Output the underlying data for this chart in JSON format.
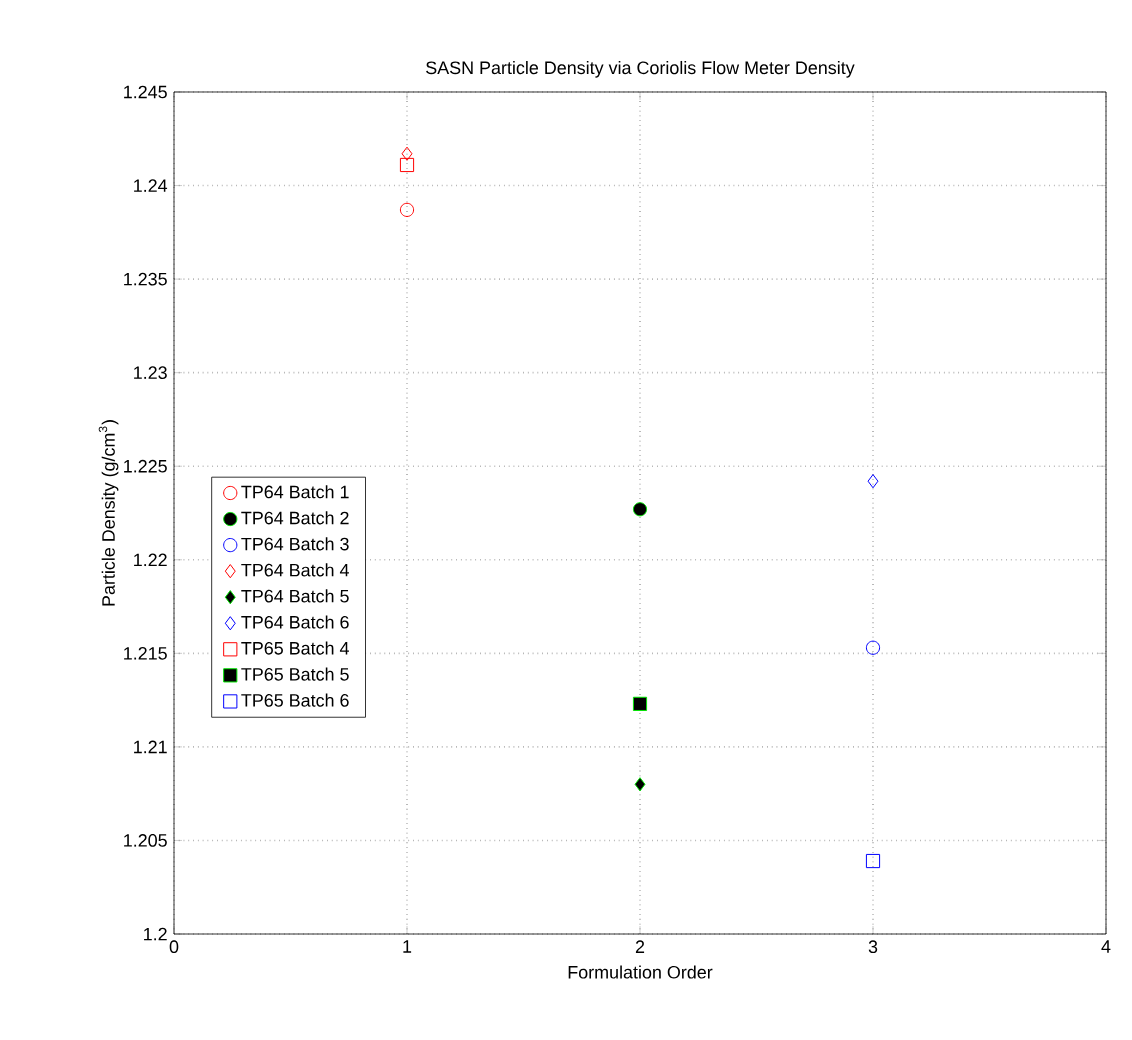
{
  "chart_data": {
    "type": "scatter",
    "title": "SASN Particle Density via Coriolis Flow Meter Density",
    "xlabel": "Formulation Order",
    "ylabel": "Particle Density (g/cm$^{3}$)",
    "series": [
      {
        "name": "TP64 Batch 1",
        "color": "#ff0000",
        "marker": "circle",
        "x": [
          1
        ],
        "values": [
          1.2387
        ]
      },
      {
        "name": "TP64 Batch 2",
        "color": "#000000",
        "marker": "circle",
        "x": [
          2
        ],
        "values": [
          1.2227
        ]
      },
      {
        "name": "TP64 Batch 3",
        "color": "#0000ff",
        "marker": "circle",
        "x": [
          3
        ],
        "values": [
          1.2153
        ]
      },
      {
        "name": "TP64 Batch 4",
        "color": "#ff0000",
        "marker": "diamond",
        "x": [
          1
        ],
        "values": [
          1.2417
        ]
      },
      {
        "name": "TP64 Batch 5",
        "color": "#000000",
        "marker": "diamond",
        "x": [
          2
        ],
        "values": [
          1.208
        ]
      },
      {
        "name": "TP64 Batch 6",
        "color": "#0000ff",
        "marker": "diamond",
        "x": [
          3
        ],
        "values": [
          1.2242
        ]
      },
      {
        "name": "TP65 Batch 4",
        "color": "#ff0000",
        "marker": "square",
        "x": [
          1
        ],
        "values": [
          1.2411
        ]
      },
      {
        "name": "TP65 Batch 5",
        "color": "#000000",
        "marker": "square",
        "x": [
          2
        ],
        "values": [
          1.2123
        ]
      },
      {
        "name": "TP65 Batch 6",
        "color": "#0000ff",
        "marker": "square",
        "x": [
          3
        ],
        "values": [
          1.2039
        ]
      }
    ],
    "xlim": [
      0,
      4
    ],
    "xticks": [
      0,
      1,
      2,
      3,
      4
    ],
    "ylim": [
      1.2,
      1.245
    ],
    "yticks": [
      1.2,
      1.205,
      1.21,
      1.215,
      1.22,
      1.225,
      1.23,
      1.235,
      1.24,
      1.245
    ],
    "grid": true,
    "legend": "left"
  }
}
